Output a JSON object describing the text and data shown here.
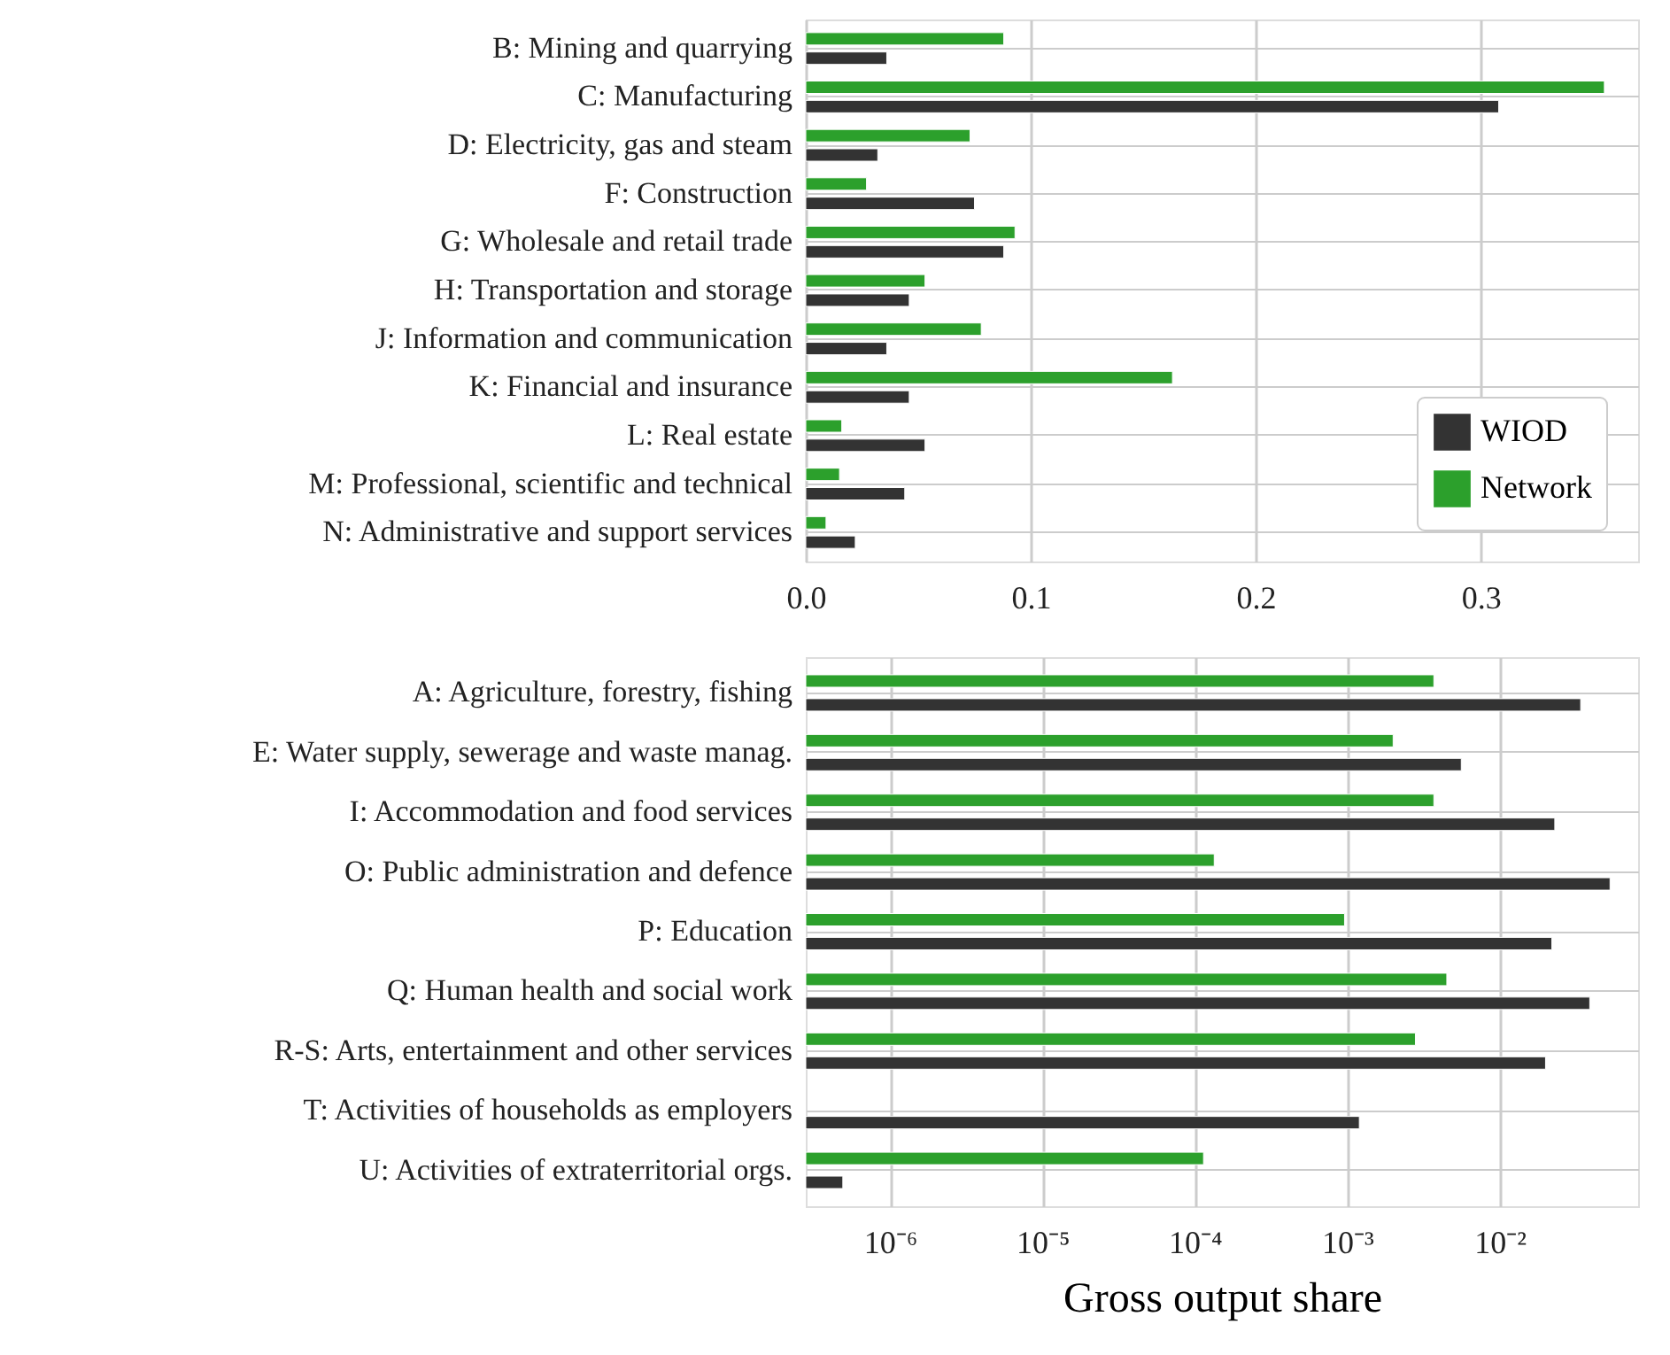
{
  "chart_data": [
    {
      "type": "bar",
      "orientation": "horizontal",
      "categories": [
        "B: Mining and quarrying",
        "C: Manufacturing",
        "D: Electricity, gas and steam",
        "F: Construction",
        "G: Wholesale and retail trade",
        "H: Transportation and storage",
        "J: Information and communication",
        "K: Financial and insurance",
        "L: Real estate",
        "M: Professional, scientific and technical",
        "N: Administrative and support services"
      ],
      "series": [
        {
          "name": "WIOD",
          "color": "#333333",
          "values": [
            0.036,
            0.308,
            0.032,
            0.075,
            0.088,
            0.046,
            0.036,
            0.046,
            0.053,
            0.044,
            0.022
          ]
        },
        {
          "name": "Network",
          "color": "#2ca02c",
          "values": [
            0.088,
            0.355,
            0.073,
            0.027,
            0.093,
            0.053,
            0.078,
            0.163,
            0.016,
            0.015,
            0.009
          ]
        }
      ],
      "xlim": [
        0,
        0.37
      ],
      "xticks": [
        {
          "value": 0,
          "label": "0.0"
        },
        {
          "value": 0.1,
          "label": "0.1"
        },
        {
          "value": 0.2,
          "label": "0.2"
        },
        {
          "value": 0.3,
          "label": "0.3"
        }
      ],
      "grid": true,
      "legend": "bottom right"
    },
    {
      "type": "bar",
      "orientation": "horizontal",
      "categories": [
        "A: Agriculture, forestry, fishing",
        "E: Water supply, sewerage and waste manag.",
        "I: Accommodation and food services",
        "O: Public administration and defence",
        "P: Education",
        "Q: Human health and social work",
        "R-S: Arts, entertainment and other services",
        "T: Activities of households as employers",
        "U: Activities of extraterritorial orgs."
      ],
      "series": [
        {
          "color": "#333333",
          "values": [
            0.034,
            0.0056,
            0.023,
            0.053,
            0.022,
            0.039,
            0.02,
            0.0012,
            4.9e-07
          ]
        },
        {
          "color": "#2ca02c",
          "values": [
            0.0037,
            0.002,
            0.0037,
            0.000134,
            0.00096,
            0.0045,
            0.0028,
            null,
            0.000114
          ]
        }
      ],
      "xlabel": "Gross output share",
      "log": "x",
      "xlim": [
        2.8e-07,
        0.081
      ],
      "xticks": [
        {
          "value": 1e-06,
          "label": "10⁻⁶"
        },
        {
          "value": 1e-05,
          "label": "10⁻⁵"
        },
        {
          "value": 0.0001,
          "label": "10⁻⁴"
        },
        {
          "value": 0.001,
          "label": "10⁻³"
        },
        {
          "value": 0.01,
          "label": "10⁻²"
        }
      ],
      "grid": true,
      "legend": false
    }
  ]
}
